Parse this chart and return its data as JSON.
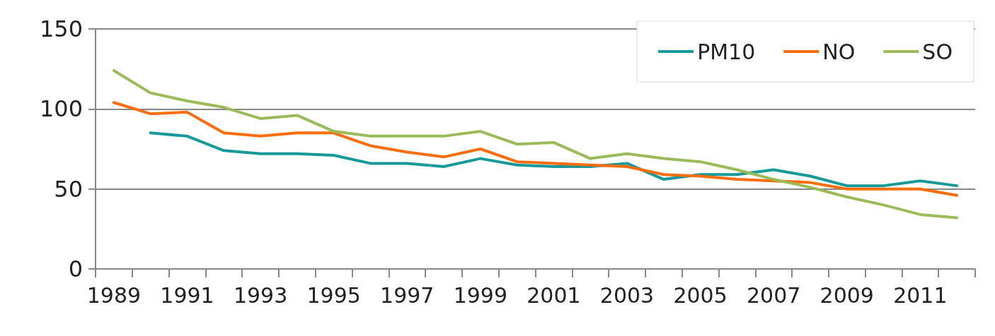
{
  "chart_data": {
    "type": "line",
    "categories": [
      "1989",
      null,
      "1991",
      null,
      "1993",
      null,
      "1995",
      null,
      "1997",
      null,
      "1999",
      null,
      "2001",
      null,
      "2003",
      null,
      "2005",
      null,
      "2007",
      null,
      "2009",
      null,
      "2011",
      null
    ],
    "series": [
      {
        "name": "PM10",
        "color": "#17999a",
        "values": [
          null,
          85,
          83,
          74,
          72,
          72,
          71,
          66,
          66,
          64,
          69,
          65,
          64,
          64,
          66,
          56,
          59,
          59,
          62,
          58,
          52,
          52,
          55,
          52
        ]
      },
      {
        "name": "NO",
        "color": "#f86d0e",
        "values": [
          104,
          97,
          98,
          85,
          83,
          85,
          85,
          77,
          73,
          70,
          75,
          67,
          66,
          65,
          64,
          59,
          58,
          56,
          55,
          54,
          50,
          50,
          50,
          46
        ]
      },
      {
        "name": "SO",
        "color": "#9bbb59",
        "values": [
          124,
          110,
          105,
          101,
          94,
          96,
          86,
          83,
          83,
          83,
          86,
          78,
          79,
          69,
          72,
          69,
          67,
          62,
          56,
          51,
          45,
          40,
          34,
          32
        ]
      }
    ],
    "ylim": [
      0,
      150
    ],
    "yticks": [
      0,
      50,
      100,
      150
    ],
    "grid": "y",
    "legend": "top right",
    "marker": "none",
    "line_style": "solid"
  }
}
